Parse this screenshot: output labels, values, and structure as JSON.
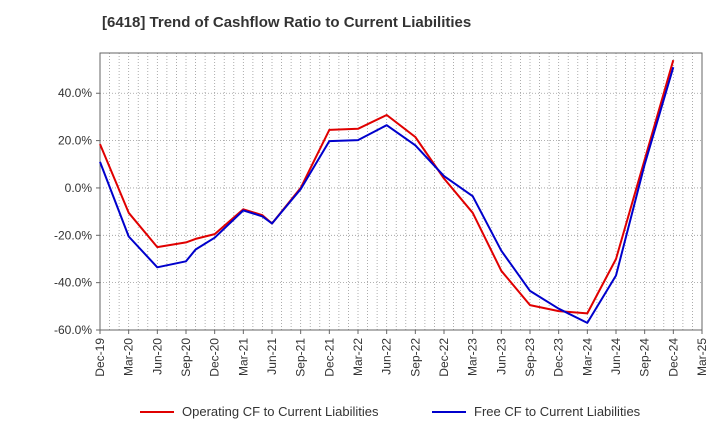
{
  "title": "[6418]  Trend of Cashflow Ratio to Current Liabilities",
  "colors": {
    "operating": "#e00000",
    "free": "#0000cc",
    "grid": "#999999",
    "axis": "#666666",
    "text": "#333333"
  },
  "chart_data": {
    "type": "line",
    "title": "[6418]  Trend of Cashflow Ratio to Current Liabilities",
    "xlabel": "",
    "ylabel": "",
    "ylim": [
      -60,
      57
    ],
    "yticks": [
      40,
      20,
      0,
      -20,
      -40,
      -60
    ],
    "ytick_labels": [
      "40.0%",
      "20.0%",
      "0.0%",
      "-20.0%",
      "-40.0%",
      "-60.0%"
    ],
    "xtick_labels": [
      "Dec-19",
      "Mar-20",
      "Jun-20",
      "Sep-20",
      "Dec-20",
      "Mar-21",
      "Jun-21",
      "Sep-21",
      "Dec-21",
      "Mar-22",
      "Jun-22",
      "Sep-22",
      "Dec-22",
      "Mar-23",
      "Jun-23",
      "Sep-23",
      "Dec-23",
      "Mar-24",
      "Jun-24",
      "Sep-24",
      "Dec-24",
      "Mar-25"
    ],
    "x": [
      "Dec-19",
      "Mar-20",
      "Jun-20",
      "Sep-20",
      "Oct-20",
      "Dec-20",
      "Mar-21",
      "May-21",
      "Jun-21",
      "Sep-21",
      "Dec-21",
      "Mar-22",
      "Jun-22",
      "Sep-22",
      "Dec-22",
      "Mar-23",
      "Jun-23",
      "Sep-23",
      "Dec-23",
      "Mar-24",
      "Jun-24",
      "Sep-24",
      "Dec-24"
    ],
    "grid": true,
    "legend_position": "bottom",
    "series": [
      {
        "name": "Operating CF to Current Liabilities",
        "color": "#e00000",
        "values": [
          18.5,
          -10.5,
          -25.0,
          -23.0,
          -21.5,
          -19.5,
          -9.0,
          -11.5,
          -15.0,
          0.0,
          24.5,
          25.0,
          30.8,
          21.5,
          4.0,
          -10.5,
          -35.0,
          -49.5,
          -52.0,
          -53.0,
          -30.0,
          12.0,
          54.0
        ]
      },
      {
        "name": "Free CF to Current Liabilities",
        "color": "#0000cc",
        "values": [
          11.0,
          -20.5,
          -33.5,
          -31.0,
          -26.0,
          -21.0,
          -9.5,
          -12.0,
          -15.0,
          -0.5,
          19.8,
          20.2,
          26.5,
          18.0,
          5.0,
          -3.5,
          -26.5,
          -43.5,
          -51.0,
          -57.0,
          -37.0,
          10.0,
          51.0
        ]
      }
    ]
  }
}
